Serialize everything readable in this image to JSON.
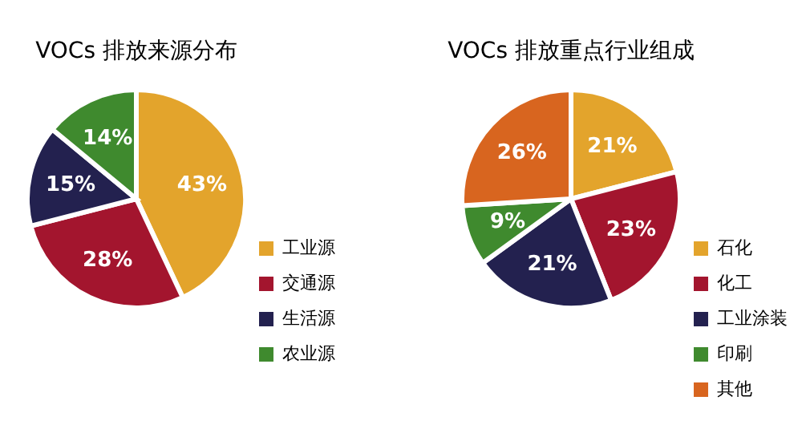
{
  "chart_data": [
    {
      "type": "pie",
      "title": "VOCs 排放来源分布",
      "categories": [
        "工业源",
        "交通源",
        "生活源",
        "农业源"
      ],
      "values": [
        43,
        28,
        15,
        14
      ],
      "value_labels": [
        "43%",
        "28%",
        "15%",
        "14%"
      ],
      "colors": [
        "#e3a42c",
        "#a3152e",
        "#23214f",
        "#3f8a2e"
      ],
      "legend": "bottom right"
    },
    {
      "type": "pie",
      "title": "VOCs 排放重点行业组成",
      "categories": [
        "石化",
        "化工",
        "工业涂装",
        "印刷",
        "其他"
      ],
      "values": [
        21,
        23,
        21,
        9,
        26
      ],
      "value_labels": [
        "21%",
        "23%",
        "21%",
        "9%",
        "26%"
      ],
      "colors": [
        "#e3a42c",
        "#a3152e",
        "#23214f",
        "#3f8a2e",
        "#d8651f"
      ],
      "legend": "bottom right"
    }
  ]
}
